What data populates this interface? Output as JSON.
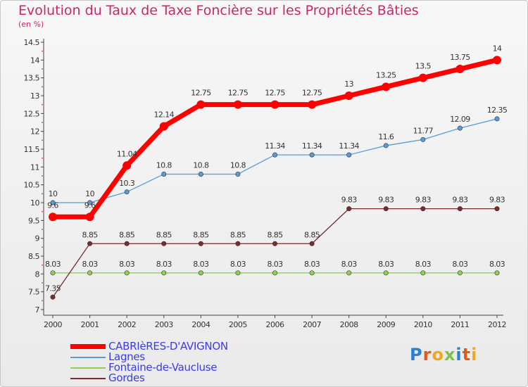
{
  "title": "Evolution du Taux de Taxe Foncière sur les Propriétés Bâties",
  "unit_label": "(en %)",
  "logo": {
    "letters": [
      "P",
      "r",
      "o",
      "x",
      "i",
      "t",
      "i"
    ],
    "colors": [
      "#2a7fd4",
      "#e05a1c",
      "#f2a71b",
      "#7cc243",
      "#2a7fd4",
      "#e05a1c",
      "#f2a71b"
    ]
  },
  "chart_data": {
    "type": "line",
    "x": [
      "2000",
      "2001",
      "2002",
      "2003",
      "2004",
      "2005",
      "2006",
      "2007",
      "2008",
      "2009",
      "2010",
      "2011",
      "2012"
    ],
    "ylim": [
      7,
      14.5
    ],
    "yticks": [
      "7",
      "7.5",
      "8",
      "8.5",
      "9",
      "9.5",
      "10",
      "10.5",
      "11",
      "11.5",
      "12",
      "12.5",
      "13",
      "13.5",
      "14",
      "14.5"
    ],
    "grid": false,
    "legend_position": "bottom-left",
    "series": [
      {
        "name": "CABRIèRES-D'AVIGNON",
        "color": "#ff0000",
        "values": [
          9.6,
          9.6,
          11.04,
          12.14,
          12.75,
          12.75,
          12.75,
          12.75,
          13,
          13.25,
          13.5,
          13.75,
          14
        ],
        "labels": [
          "9.6",
          "9.6",
          "11.04",
          "12.14",
          "12.75",
          "12.75",
          "12.75",
          "12.75",
          "13",
          "13.25",
          "13.5",
          "13.75",
          "14"
        ]
      },
      {
        "name": "Lagnes",
        "color": "#5b9bd5",
        "values": [
          10,
          10,
          10.3,
          10.8,
          10.8,
          10.8,
          11.34,
          11.34,
          11.34,
          11.6,
          11.77,
          12.09,
          12.35
        ],
        "labels": [
          "10",
          "10",
          "10.3",
          "10.8",
          "10.8",
          "10.8",
          "11.34",
          "11.34",
          "11.34",
          "11.6",
          "11.77",
          "12.09",
          "12.35"
        ]
      },
      {
        "name": "Fontaine-de-Vaucluse",
        "color": "#8fd14f",
        "values": [
          8.03,
          8.03,
          8.03,
          8.03,
          8.03,
          8.03,
          8.03,
          8.03,
          8.03,
          8.03,
          8.03,
          8.03,
          8.03
        ],
        "labels": [
          "8.03",
          "8.03",
          "8.03",
          "8.03",
          "8.03",
          "8.03",
          "8.03",
          "8.03",
          "8.03",
          "8.03",
          "8.03",
          "8.03",
          "8.03"
        ]
      },
      {
        "name": "Gordes",
        "color": "#7a2b2b",
        "values": [
          7.35,
          8.85,
          8.85,
          8.85,
          8.85,
          8.85,
          8.85,
          8.85,
          9.83,
          9.83,
          9.83,
          9.83,
          9.83
        ],
        "labels": [
          "7.35",
          "8.85",
          "8.85",
          "8.85",
          "8.85",
          "8.85",
          "8.85",
          "8.85",
          "9.83",
          "9.83",
          "9.83",
          "9.83",
          "9.83"
        ]
      }
    ]
  }
}
